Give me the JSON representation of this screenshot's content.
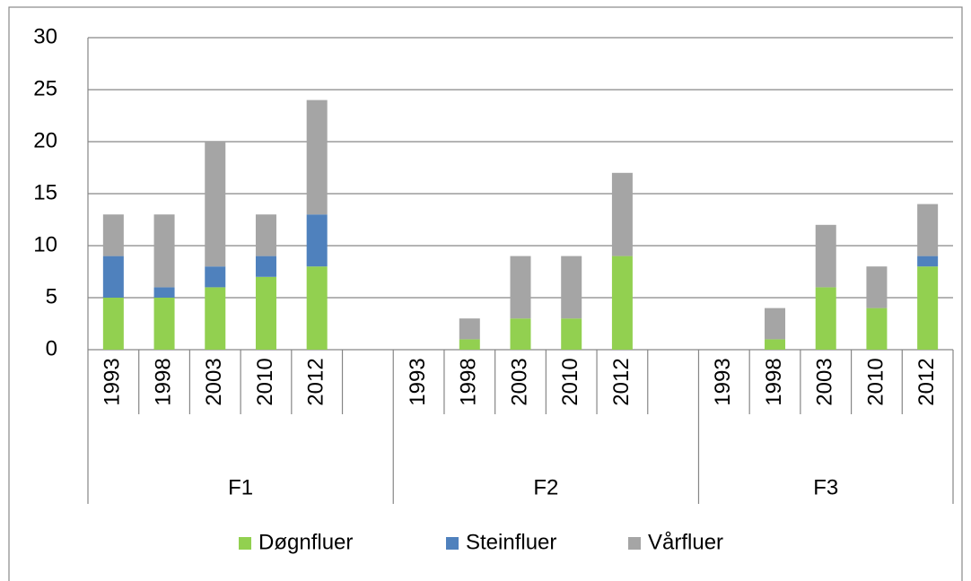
{
  "chart_data": {
    "type": "stacked_bar",
    "groups": [
      {
        "label": "F1",
        "categories": [
          "1993",
          "1998",
          "2003",
          "2010",
          "2012",
          null
        ]
      },
      {
        "label": "F2",
        "categories": [
          "1993",
          "1998",
          "2003",
          "2010",
          "2012",
          null
        ]
      },
      {
        "label": "F3",
        "categories": [
          "1993",
          "1998",
          "2003",
          "2010",
          "2012"
        ]
      }
    ],
    "series": [
      {
        "name": "Døgnfluer",
        "color": "#92d050",
        "values": [
          5,
          5,
          6,
          7,
          8,
          null,
          0,
          1,
          3,
          3,
          9,
          null,
          0,
          1,
          6,
          4,
          8
        ]
      },
      {
        "name": "Steinfluer",
        "color": "#4f81bd",
        "values": [
          4,
          1,
          2,
          2,
          5,
          null,
          0,
          0,
          0,
          0,
          0,
          null,
          0,
          0,
          0,
          0,
          1
        ]
      },
      {
        "name": "Vårfluer",
        "color": "#a5a5a5",
        "values": [
          4,
          7,
          12,
          4,
          11,
          null,
          0,
          2,
          6,
          6,
          8,
          null,
          0,
          3,
          6,
          4,
          5
        ]
      }
    ],
    "ylim": [
      0,
      30
    ],
    "yticks": [
      0,
      5,
      10,
      15,
      20,
      25,
      30
    ],
    "grid": true,
    "legend": "bottom"
  }
}
